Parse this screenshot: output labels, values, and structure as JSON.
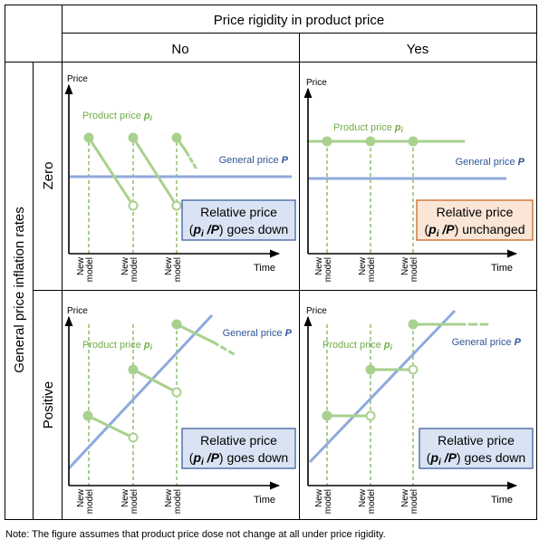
{
  "header": {
    "top": "Price rigidity in product price",
    "col_no": "No",
    "col_yes": "Yes"
  },
  "rows": {
    "group_label": "General price inflation rates",
    "zero": "Zero",
    "positive": "Positive"
  },
  "axis": {
    "y_label": "Price",
    "x_label": "Time",
    "tick_line1": "New",
    "tick_line2": "model"
  },
  "labels": {
    "product_price": "Product price ",
    "product_price_var": "p",
    "product_price_sub": "i",
    "general_price": "General price ",
    "general_price_var": "P"
  },
  "boxes": {
    "relative_price": "Relative price",
    "ratio_open": "(",
    "ratio_var_p": "p",
    "ratio_sub": "i",
    "ratio_slash": " /",
    "ratio_var_P": "P",
    "ratio_close": ")",
    "goes_down": " goes down",
    "unchanged": " unchanged"
  },
  "note": "Note: The figure assumes that product price dose not change at all under price rigidity.",
  "colors": {
    "green": "#a9d18e",
    "green_dark": "#70ad47",
    "blue": "#8faadc",
    "blue_text": "#2f5597",
    "box_blue_fill": "#dae3f3",
    "box_blue_stroke": "#2f5597",
    "box_orange_fill": "#fbe5d6",
    "box_orange_stroke": "#c55a11"
  }
}
